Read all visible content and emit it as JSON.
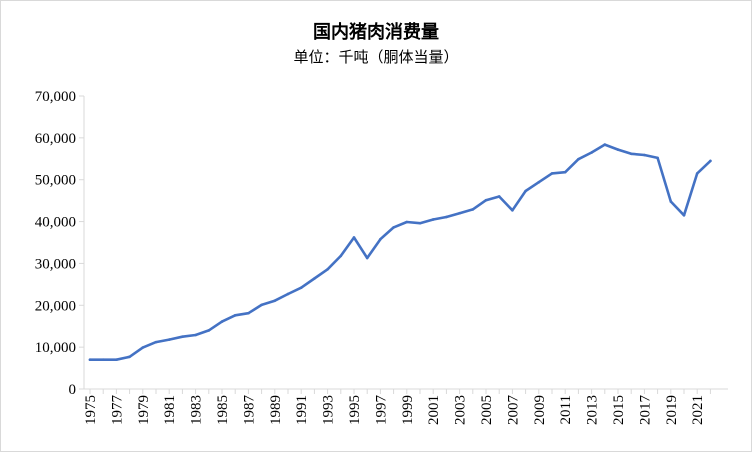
{
  "chart_data": {
    "type": "line",
    "title": "国内猪肉消费量",
    "subtitle": "单位：千吨（胴体当量）",
    "xlabel": "",
    "ylabel": "",
    "ylim": [
      0,
      70000
    ],
    "yticks": [
      0,
      10000,
      20000,
      30000,
      40000,
      50000,
      60000,
      70000
    ],
    "ytick_labels": [
      "0",
      "10,000",
      "20,000",
      "30,000",
      "40,000",
      "50,000",
      "60,000",
      "70,000"
    ],
    "xtick_labels": [
      "1975",
      "1977",
      "1979",
      "1981",
      "1983",
      "1985",
      "1987",
      "1989",
      "1991",
      "1993",
      "1995",
      "1997",
      "1999",
      "2001",
      "2003",
      "2005",
      "2007",
      "2009",
      "2011",
      "2013",
      "2015",
      "2017",
      "2019",
      "2021"
    ],
    "grid": false,
    "legend": "none",
    "color": "#4472c4",
    "x": [
      1975,
      1976,
      1977,
      1978,
      1979,
      1980,
      1981,
      1982,
      1983,
      1984,
      1985,
      1986,
      1987,
      1988,
      1989,
      1990,
      1991,
      1992,
      1993,
      1994,
      1995,
      1996,
      1997,
      1998,
      1999,
      2000,
      2001,
      2002,
      2003,
      2004,
      2005,
      2006,
      2007,
      2008,
      2009,
      2010,
      2011,
      2012,
      2013,
      2014,
      2015,
      2016,
      2017,
      2018,
      2019,
      2020,
      2021,
      2022
    ],
    "values": [
      7000,
      7000,
      7000,
      7700,
      9900,
      11200,
      11800,
      12500,
      12900,
      14000,
      16100,
      17600,
      18100,
      20100,
      21100,
      22700,
      24200,
      26400,
      28600,
      31800,
      36200,
      31300,
      35800,
      38600,
      39900,
      39600,
      40500,
      41100,
      42000,
      42900,
      45100,
      46000,
      42700,
      47300,
      49400,
      51500,
      51800,
      54900,
      56500,
      58400,
      57200,
      56200,
      55900,
      55200,
      44800,
      41500,
      51500,
      54500
    ]
  }
}
